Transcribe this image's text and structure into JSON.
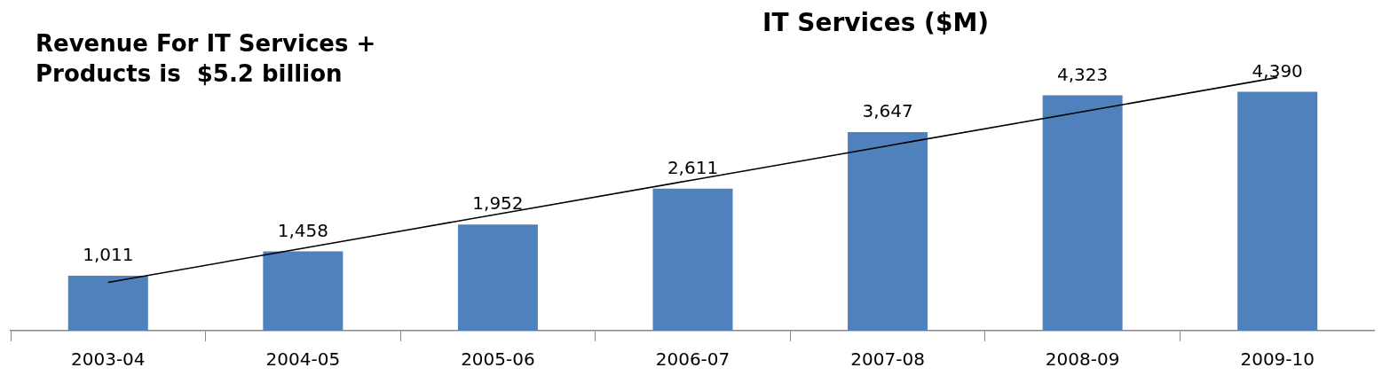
{
  "chart_data": {
    "type": "bar",
    "title": "IT Services ($M)",
    "annotations": [
      "Revenue For IT Services + Products is  $5.2 billion"
    ],
    "categories": [
      "2003-04",
      "2004-05",
      "2005-06",
      "2006-07",
      "2007-08",
      "2008-09",
      "2009-10"
    ],
    "grid": false,
    "legend": false,
    "series": [
      {
        "color": "#4f81bd",
        "values": [
          1011,
          1458,
          1952,
          2611,
          3647,
          4323,
          4390
        ],
        "value_labels": [
          "1,011",
          "1,458",
          "1,952",
          "2,611",
          "3,647",
          "4,323",
          "4,390"
        ]
      },
      {
        "type": "line",
        "color": "#000000",
        "values": [
          888,
          1515,
          2142,
          2770,
          3397,
          4024,
          4652
        ],
        "marker": "none",
        "line_style": "solid"
      }
    ]
  }
}
